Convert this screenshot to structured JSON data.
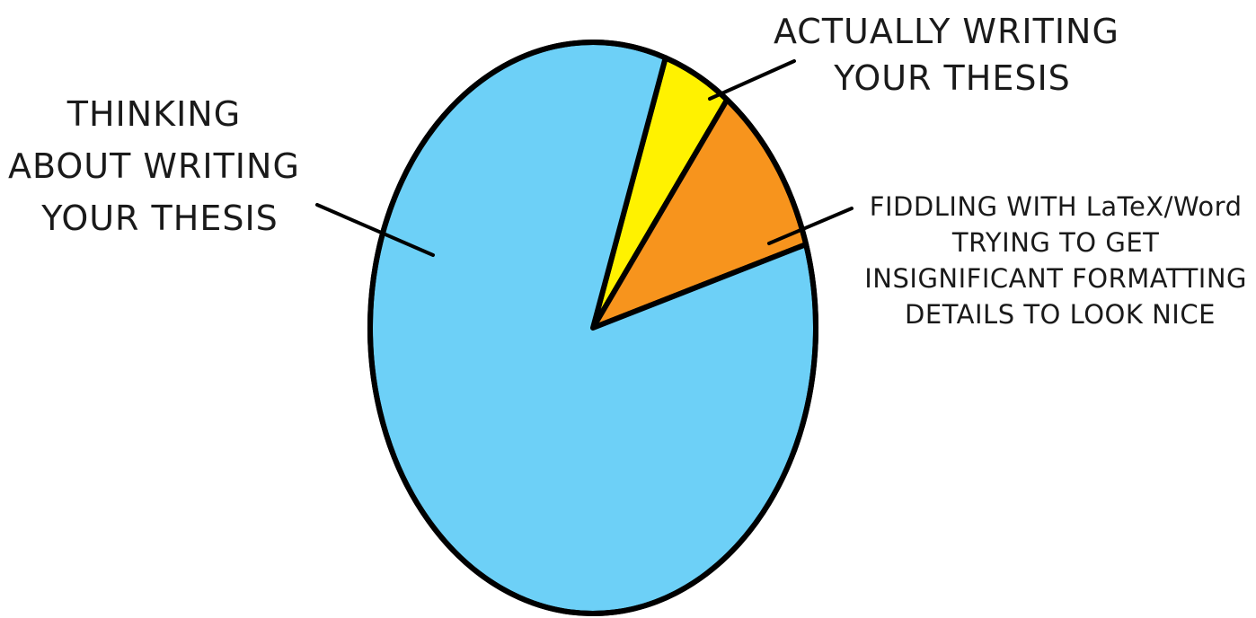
{
  "chart_data": {
    "type": "pie",
    "slices": [
      {
        "label": "THINKING ABOUT WRITING YOUR THESIS",
        "lines": [
          "THINKING",
          "ABOUT WRITING",
          "YOUR THESIS"
        ],
        "value": 85,
        "color": "#6dd0f7"
      },
      {
        "label": "ACTUALLY WRITING YOUR THESIS",
        "lines": [
          "ACTUALLY WRITING",
          "YOUR THESIS"
        ],
        "value": 5,
        "color": "#fff200"
      },
      {
        "label": "FIDDLING WITH LaTeX/Word TRYING TO GET INSIGNIFICANT FORMATTING DETAILS TO LOOK NICE",
        "lines": [
          "FIDDLING WITH LaTeX/Word",
          "TRYING TO GET",
          "INSIGNIFICANT FORMATTING",
          "DETAILS TO LOOK NICE"
        ],
        "value": 10,
        "color": "#f7941d"
      }
    ],
    "legend": "none",
    "grid": false
  }
}
